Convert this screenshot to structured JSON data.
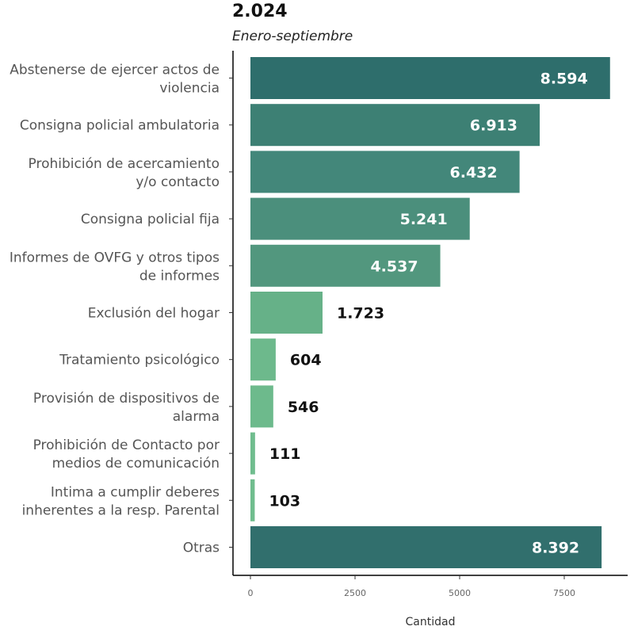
{
  "chart_data": {
    "type": "bar",
    "orientation": "horizontal",
    "title": "2.024",
    "subtitle": "Enero-septiembre",
    "xlabel": "Cantidad",
    "ylabel": "",
    "xlim": [
      0,
      8750
    ],
    "xticks": [
      0,
      2500,
      5000,
      7500
    ],
    "grid": false,
    "legend": "none",
    "categories": [
      [
        "Abstenerse de ejercer actos de",
        "violencia"
      ],
      [
        "Consigna policial ambulatoria"
      ],
      [
        "Prohibición de acercamiento",
        "y/o contacto"
      ],
      [
        "Consigna policial fija"
      ],
      [
        "Informes de OVFG y otros tipos",
        "de informes"
      ],
      [
        "Exclusión del hogar"
      ],
      [
        "Tratamiento psicológico"
      ],
      [
        "Provisión de dispositivos de",
        "alarma"
      ],
      [
        "Prohibición de Contacto por",
        "medios de comunicación"
      ],
      [
        "Intima a cumplir deberes",
        "inherentes a la resp. Parental"
      ],
      [
        "Otras"
      ]
    ],
    "values": [
      8594,
      6913,
      6432,
      5241,
      4537,
      1723,
      604,
      546,
      111,
      103,
      8392
    ],
    "value_labels": [
      "8.594",
      "6.913",
      "6.432",
      "5.241",
      "4.537",
      "1.723",
      "604",
      "546",
      "111",
      "103",
      "8.392"
    ],
    "colors": [
      "#2e6e6c",
      "#3d8074",
      "#43877a",
      "#4b8f7c",
      "#52977e",
      "#66b188",
      "#6db98c",
      "#6dba8c",
      "#70bd8e",
      "#70bd8e",
      "#316f6d"
    ]
  }
}
